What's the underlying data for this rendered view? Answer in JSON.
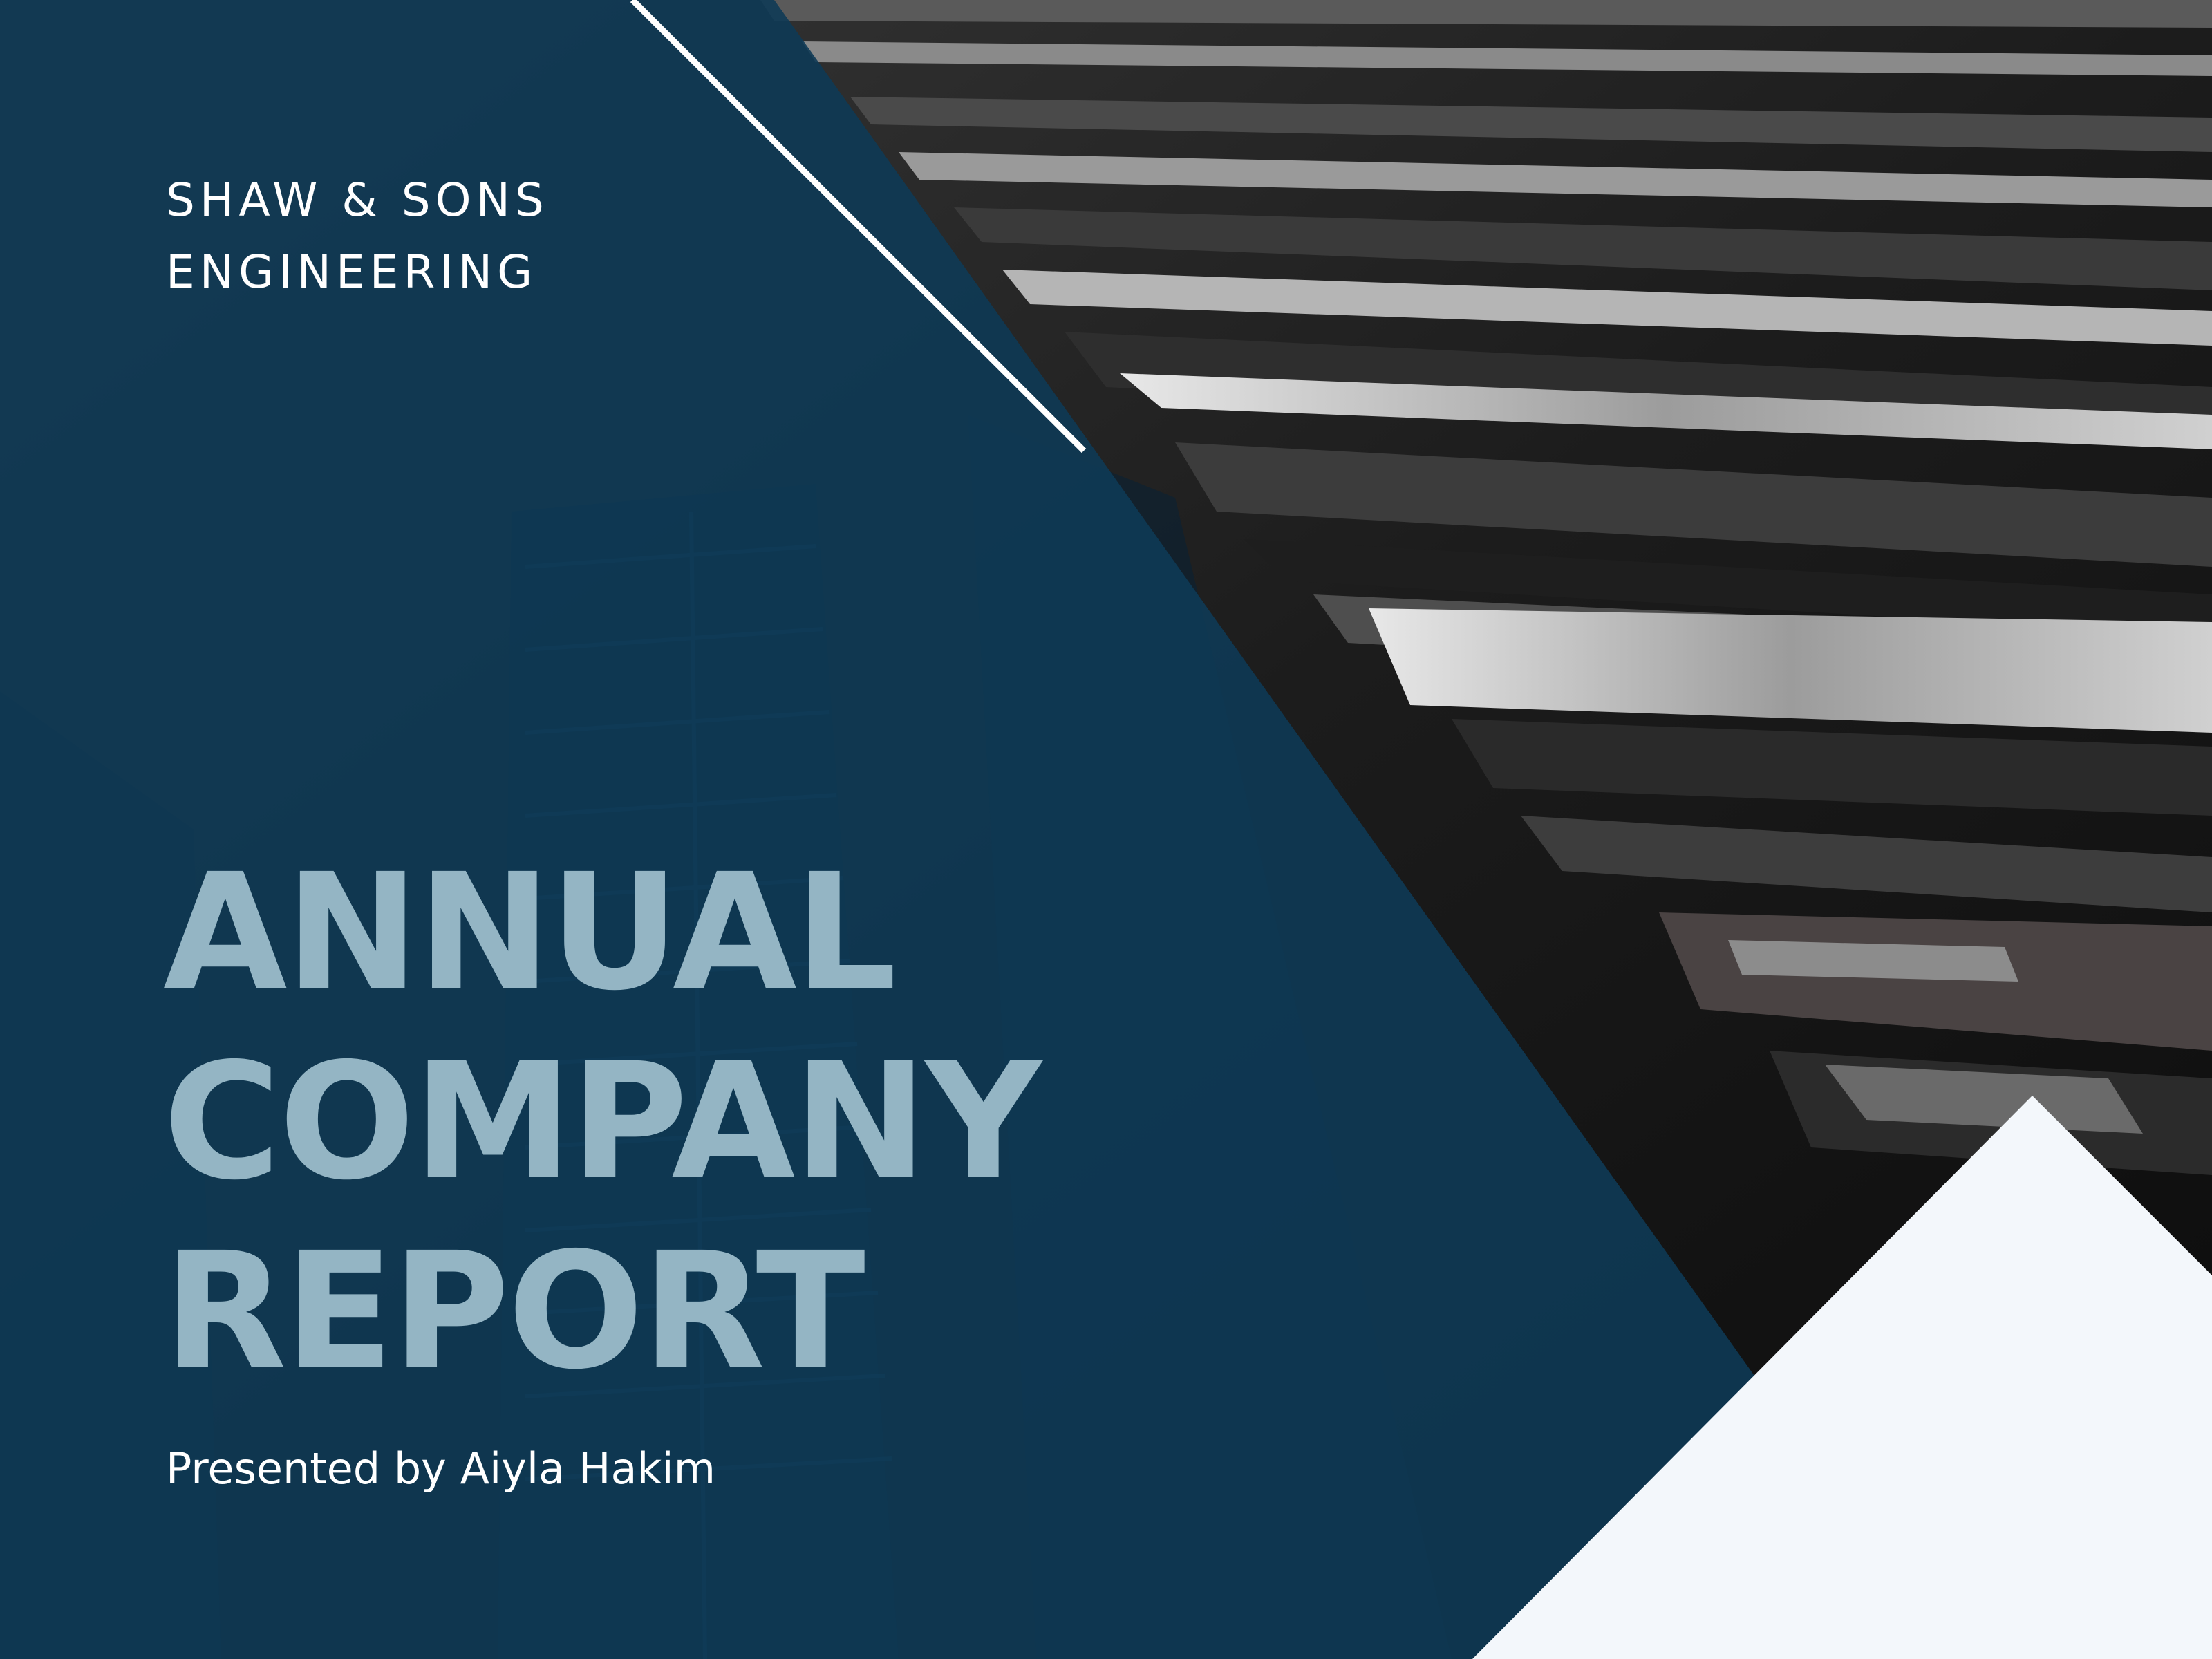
{
  "company": {
    "line1": "SHAW & SONS",
    "line2": "ENGINEERING"
  },
  "title": {
    "line1": "ANNUAL",
    "line2": "COMPANY",
    "line3": "REPORT"
  },
  "presenter": "Presented by Aiyla Hakim",
  "colors": {
    "panel_blue": "#0e3a55",
    "title_light_blue": "#94b5c4",
    "white_text": "#ffffff",
    "corner_triangle": "#f3f7fb"
  }
}
